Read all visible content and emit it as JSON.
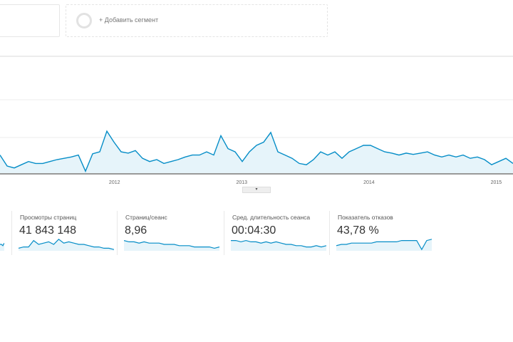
{
  "segments": {
    "add_label": "+ Добавить сегмент"
  },
  "chart_data": {
    "type": "area",
    "x_start": 2011.1,
    "x_step": 0.056,
    "values": [
      28,
      11,
      8,
      13,
      18,
      15,
      15,
      18,
      21,
      23,
      25,
      28,
      3,
      30,
      33,
      65,
      48,
      33,
      31,
      35,
      23,
      18,
      21,
      15,
      18,
      21,
      25,
      28,
      28,
      33,
      28,
      58,
      38,
      33,
      18,
      33,
      43,
      48,
      63,
      33,
      28,
      23,
      15,
      13,
      21,
      33,
      28,
      33,
      23,
      33,
      38,
      43,
      43,
      38,
      33,
      31,
      28,
      31,
      29,
      31,
      33,
      28,
      25,
      28,
      25,
      28,
      23,
      25,
      21,
      13,
      18,
      23,
      15
    ],
    "ylim": [
      0,
      160
    ],
    "xticks": [
      {
        "label": "2012",
        "year": 2012
      },
      {
        "label": "2013",
        "year": 2013
      },
      {
        "label": "2014",
        "year": 2014
      },
      {
        "label": "2015",
        "year": 2015
      }
    ],
    "color": "#058dc7",
    "fill": "#e6f4fa"
  },
  "metrics": [
    {
      "label": "",
      "value": "",
      "spark": [
        5,
        5,
        4,
        6
      ]
    },
    {
      "label": "Просмотры страниц",
      "value": "41 843 148",
      "spark": [
        2,
        3,
        3,
        8,
        5,
        6,
        7,
        5,
        9,
        6,
        7,
        6,
        5,
        5,
        4,
        3,
        3,
        2,
        2,
        1
      ]
    },
    {
      "label": "Страниц/сеанс",
      "value": "8,96",
      "spark": [
        8,
        7,
        7,
        6,
        7,
        6,
        6,
        6,
        5,
        5,
        5,
        4,
        4,
        4,
        3,
        3,
        3,
        3,
        2,
        3
      ]
    },
    {
      "label": "Сред. длительность сеанса",
      "value": "00:04:30",
      "spark": [
        8,
        8,
        7,
        8,
        7,
        7,
        6,
        7,
        6,
        7,
        6,
        5,
        5,
        4,
        4,
        3,
        3,
        4,
        3,
        4
      ]
    },
    {
      "label": "Показатель отказов",
      "value": "43,78 %",
      "spark": [
        4,
        5,
        5,
        6,
        6,
        6,
        6,
        6,
        7,
        7,
        7,
        7,
        7,
        8,
        8,
        8,
        8,
        1,
        8,
        9
      ]
    }
  ]
}
